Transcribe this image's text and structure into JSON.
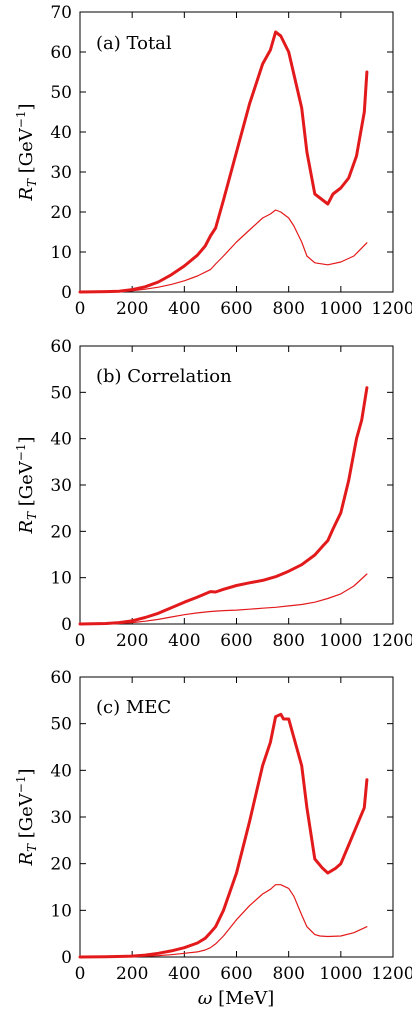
{
  "colors": {
    "line": "#e31a1c",
    "axis": "#000000"
  },
  "xlabel": "ω [MeV]",
  "chart_data": [
    {
      "type": "line",
      "title": "(a) Total",
      "ylabel": "R_T [GeV^-1]",
      "xlim": [
        0,
        1200
      ],
      "ylim": [
        0,
        70
      ],
      "xticks": [
        0,
        200,
        400,
        600,
        800,
        1000,
        1200
      ],
      "yticks": [
        0,
        10,
        20,
        30,
        40,
        50,
        60,
        70
      ],
      "grid": false,
      "series": [
        {
          "style": "thick",
          "x": [
            0,
            100,
            150,
            200,
            250,
            300,
            350,
            400,
            450,
            480,
            500,
            520,
            550,
            600,
            650,
            700,
            730,
            750,
            770,
            800,
            850,
            870,
            900,
            920,
            950,
            970,
            1000,
            1030,
            1060,
            1090,
            1100
          ],
          "y": [
            0,
            0.1,
            0.2,
            0.6,
            1.3,
            2.5,
            4.3,
            6.5,
            9.2,
            11.5,
            14,
            16,
            23,
            35,
            47,
            57,
            60.5,
            65,
            64,
            60,
            46,
            35,
            24.5,
            23.5,
            22,
            24.5,
            26,
            28.5,
            34,
            45,
            55
          ]
        },
        {
          "style": "thin",
          "x": [
            0,
            100,
            150,
            200,
            250,
            300,
            350,
            400,
            450,
            500,
            520,
            550,
            600,
            650,
            700,
            730,
            750,
            770,
            800,
            820,
            850,
            870,
            900,
            950,
            1000,
            1050,
            1100
          ],
          "y": [
            0,
            0.05,
            0.1,
            0.3,
            0.7,
            1.2,
            1.9,
            2.8,
            4,
            5.6,
            7,
            9,
            12.5,
            15.5,
            18.5,
            19.5,
            20.5,
            20,
            18.5,
            16.5,
            12.5,
            9,
            7.3,
            6.8,
            7.5,
            9,
            12.3
          ]
        }
      ]
    },
    {
      "type": "line",
      "title": "(b) Correlation",
      "ylabel": "R_T [GeV^-1]",
      "xlim": [
        0,
        1200
      ],
      "ylim": [
        0,
        60
      ],
      "xticks": [
        0,
        200,
        400,
        600,
        800,
        1000,
        1200
      ],
      "yticks": [
        0,
        10,
        20,
        30,
        40,
        50,
        60
      ],
      "grid": false,
      "series": [
        {
          "style": "thick",
          "x": [
            0,
            100,
            150,
            200,
            250,
            300,
            350,
            400,
            450,
            500,
            520,
            550,
            600,
            650,
            700,
            750,
            800,
            850,
            900,
            930,
            950,
            970,
            1000,
            1030,
            1060,
            1080,
            1100
          ],
          "y": [
            0,
            0.1,
            0.3,
            0.7,
            1.4,
            2.3,
            3.5,
            4.7,
            5.8,
            7,
            6.9,
            7.5,
            8.3,
            8.9,
            9.4,
            10.2,
            11.4,
            12.8,
            14.9,
            16.8,
            18,
            20.5,
            24,
            31,
            40,
            44,
            51
          ]
        },
        {
          "style": "thin",
          "x": [
            0,
            100,
            150,
            200,
            250,
            300,
            350,
            400,
            450,
            500,
            550,
            600,
            650,
            700,
            750,
            800,
            850,
            900,
            950,
            1000,
            1050,
            1100
          ],
          "y": [
            0,
            0.05,
            0.1,
            0.3,
            0.6,
            1,
            1.5,
            2,
            2.4,
            2.7,
            2.9,
            3,
            3.2,
            3.4,
            3.6,
            3.9,
            4.2,
            4.7,
            5.5,
            6.5,
            8.2,
            10.8
          ]
        }
      ]
    },
    {
      "type": "line",
      "title": "(c) MEC",
      "ylabel": "R_T [GeV^-1]",
      "xlim": [
        0,
        1200
      ],
      "ylim": [
        0,
        60
      ],
      "xticks": [
        0,
        200,
        400,
        600,
        800,
        1000,
        1200
      ],
      "yticks": [
        0,
        10,
        20,
        30,
        40,
        50,
        60
      ],
      "grid": false,
      "series": [
        {
          "style": "thick",
          "x": [
            0,
            100,
            200,
            250,
            300,
            350,
            400,
            450,
            480,
            500,
            520,
            550,
            600,
            650,
            700,
            730,
            750,
            770,
            780,
            800,
            850,
            870,
            900,
            930,
            950,
            980,
            1000,
            1030,
            1060,
            1090,
            1100
          ],
          "y": [
            0,
            0.05,
            0.2,
            0.4,
            0.8,
            1.3,
            2,
            3,
            4,
            5.2,
            6.5,
            10,
            18,
            29,
            41,
            46,
            51.5,
            52,
            51,
            51,
            41,
            32,
            21,
            19,
            18,
            19,
            20,
            24,
            28,
            32,
            38
          ]
        },
        {
          "style": "thin",
          "x": [
            0,
            100,
            200,
            250,
            300,
            350,
            400,
            450,
            480,
            500,
            520,
            550,
            600,
            650,
            700,
            730,
            750,
            770,
            800,
            820,
            850,
            870,
            900,
            920,
            950,
            1000,
            1050,
            1100
          ],
          "y": [
            0,
            0.02,
            0.1,
            0.2,
            0.3,
            0.5,
            0.8,
            1.1,
            1.5,
            2,
            2.8,
            4.5,
            8,
            11,
            13.5,
            14.5,
            15.5,
            15.5,
            14.7,
            13,
            9,
            6.5,
            4.8,
            4.5,
            4.4,
            4.5,
            5.2,
            6.5
          ]
        }
      ]
    }
  ]
}
